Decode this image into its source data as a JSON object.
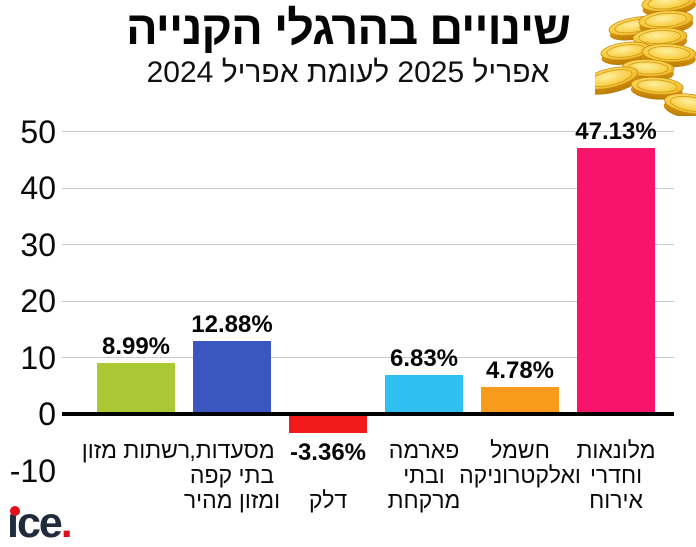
{
  "header": {
    "title": "שינויים בהרגלי הקנייה",
    "subtitle": "אפריל 2025 לעומת אפריל 2024"
  },
  "logo": {
    "text": "ice."
  },
  "decorations": {
    "coins_illustration": "stack-of-gold-coins"
  },
  "chart_data": {
    "type": "bar",
    "title": "שינויים בהרגלי הקנייה",
    "subtitle": "אפריל 2025 לעומת אפריל 2024",
    "categories": [
      "רשתות מזון",
      "מסעדות,\nבתי קפה\nומזון מהיר",
      "דלק",
      "פארמה\nובתי\nמרקחת",
      "חשמל\nואלקטרוניקה",
      "מלונאות\nוחדרי\nאירוח"
    ],
    "values": [
      8.99,
      12.88,
      -3.36,
      6.83,
      4.78,
      47.13
    ],
    "value_labels": [
      "8.99%",
      "12.88%",
      "-3.36%",
      "6.83%",
      "4.78%",
      "47.13%"
    ],
    "bar_colors": [
      "#adc835",
      "#3c56c0",
      "#f31a1e",
      "#2fc0f0",
      "#f89b1d",
      "#f8146a"
    ],
    "y_ticks": [
      50,
      40,
      30,
      20,
      10,
      0,
      -10
    ],
    "ylim": [
      -10,
      52
    ],
    "grid": true,
    "legend": false,
    "direction": "rtl",
    "axis_color": "#000000",
    "gridline_color": "#c8c8c8",
    "text_color": "#000000"
  }
}
